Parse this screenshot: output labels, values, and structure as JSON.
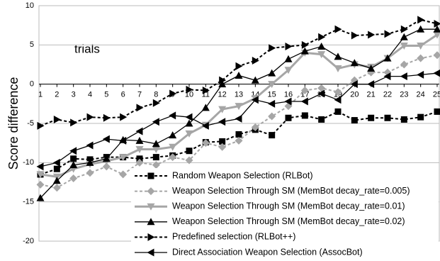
{
  "chart_data": {
    "type": "line",
    "y_label": "Score difference",
    "annotation": "trials",
    "categories": [
      "1",
      "2",
      "3",
      "4",
      "5",
      "6",
      "7",
      "8",
      "9",
      "10",
      "11",
      "12",
      "13",
      "14",
      "15",
      "16",
      "17",
      "18",
      "19",
      "20",
      "21",
      "22",
      "23",
      "24",
      "25"
    ],
    "ylim": [
      -20,
      10
    ],
    "yticks": [
      -20,
      -15,
      -10,
      -5,
      0,
      5,
      10
    ],
    "grid": true,
    "series": [
      {
        "name": "Random Weapon Selection (RLBot)",
        "color": "#000000",
        "marker": "square",
        "dash": true,
        "width": 2,
        "values": [
          -11.5,
          -10.8,
          -9.5,
          -9.6,
          -9.3,
          -9.3,
          -9.5,
          -9.3,
          -9.1,
          -8.5,
          -7.4,
          -7.3,
          -6.4,
          -5.8,
          -6.5,
          -4.3,
          -4.0,
          -4.5,
          -3.5,
          -4.6,
          -4.3,
          -4.3,
          -4.5,
          -4.2,
          -3.5
        ]
      },
      {
        "name": "Weapon Selection Through SM (MemBot decay_rate=0.005)",
        "color": "#a6a6a6",
        "marker": "diamond",
        "dash": true,
        "width": 2,
        "values": [
          -12.8,
          -13.2,
          -12,
          -11.3,
          -10.5,
          -11.5,
          -10,
          -10.3,
          -9.3,
          -9.7,
          -7.5,
          -8,
          -7.2,
          -5.5,
          -4.1,
          -2.8,
          -0.8,
          -0.5,
          -1,
          0.5,
          1.5,
          1.5,
          2.5,
          3.3,
          3.7
        ]
      },
      {
        "name": "Weapon Selection Through SM (MemBot decay_rate=0.01)",
        "color": "#a6a6a6",
        "marker": "triangle-down",
        "dash": false,
        "width": 3,
        "values": [
          -11.5,
          -11.8,
          -10.8,
          -10.2,
          -9.8,
          -9.3,
          -8.3,
          -8.3,
          -8.0,
          -6.3,
          -5.2,
          -3.2,
          -2.8,
          -1.8,
          0,
          1.8,
          4.0,
          3.8,
          2.0,
          2.5,
          2.2,
          3.3,
          4.9,
          4.9,
          6.3
        ]
      },
      {
        "name": "Weapon Selection Through SM (MemBot decay_rate=0.02)",
        "color": "#000000",
        "marker": "triangle-up",
        "dash": false,
        "width": 1.3,
        "values": [
          -14.5,
          -12.3,
          -10.3,
          -10,
          -9.5,
          -7.1,
          -7.2,
          -7.6,
          -6.5,
          -5.0,
          -3.0,
          0,
          1.1,
          0.5,
          1.4,
          3.2,
          4.2,
          4.8,
          3.5,
          2.7,
          2.0,
          3.3,
          6.0,
          7.0,
          7.0
        ]
      },
      {
        "name": "Predefined selection (RLBot++)",
        "color": "#000000",
        "marker": "triangle-right",
        "dash": true,
        "width": 2,
        "values": [
          -5.3,
          -4.5,
          -4.9,
          -4.2,
          -4.3,
          -4.2,
          -3.0,
          -2.4,
          -1.2,
          -0.7,
          -0.8,
          0.5,
          2.3,
          3.0,
          4.6,
          4.8,
          5.0,
          6.0,
          7.0,
          6.2,
          6.3,
          6.4,
          7.0,
          8.2,
          7.7
        ]
      },
      {
        "name": "Direct Association Weapon Selection (AssocBot)",
        "color": "#000000",
        "marker": "triangle-left",
        "dash": false,
        "width": 1.3,
        "values": [
          -10.5,
          -10,
          -8.5,
          -7.8,
          -7.0,
          -7.2,
          -6.0,
          -4.8,
          -4.0,
          -4.2,
          -5.3,
          -4.8,
          -4.4,
          -2.0,
          -2.5,
          -2.2,
          -2.2,
          -1.2,
          -2.0,
          0,
          0,
          1.0,
          1.0,
          1.2,
          1.4
        ]
      }
    ]
  }
}
